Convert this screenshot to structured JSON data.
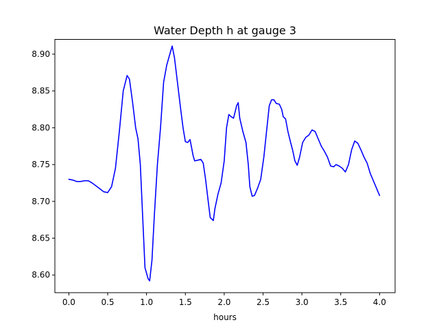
{
  "chart_data": {
    "type": "line",
    "title": "Water Depth h at gauge 3",
    "xlabel": "hours",
    "ylabel": "",
    "xlim": [
      -0.18,
      4.2
    ],
    "ylim": [
      8.576,
      8.92
    ],
    "xticks": [
      0.0,
      0.5,
      1.0,
      1.5,
      2.0,
      2.5,
      3.0,
      3.5,
      4.0
    ],
    "xtick_labels": [
      "0.0",
      "0.5",
      "1.0",
      "1.5",
      "2.0",
      "2.5",
      "3.0",
      "3.5",
      "4.0"
    ],
    "yticks": [
      8.6,
      8.65,
      8.7,
      8.75,
      8.8,
      8.85,
      8.9
    ],
    "ytick_labels": [
      "8.60",
      "8.65",
      "8.70",
      "8.75",
      "8.80",
      "8.85",
      "8.90"
    ],
    "grid": false,
    "series": [
      {
        "color": "#0000ff",
        "points": [
          [
            0.0,
            8.73
          ],
          [
            0.05,
            8.729
          ],
          [
            0.1,
            8.727
          ],
          [
            0.15,
            8.727
          ],
          [
            0.2,
            8.728
          ],
          [
            0.25,
            8.728
          ],
          [
            0.3,
            8.725
          ],
          [
            0.35,
            8.721
          ],
          [
            0.4,
            8.717
          ],
          [
            0.45,
            8.713
          ],
          [
            0.5,
            8.712
          ],
          [
            0.55,
            8.72
          ],
          [
            0.6,
            8.745
          ],
          [
            0.65,
            8.795
          ],
          [
            0.7,
            8.85
          ],
          [
            0.75,
            8.871
          ],
          [
            0.78,
            8.866
          ],
          [
            0.82,
            8.835
          ],
          [
            0.86,
            8.8
          ],
          [
            0.89,
            8.785
          ],
          [
            0.92,
            8.75
          ],
          [
            0.95,
            8.68
          ],
          [
            0.98,
            8.61
          ],
          [
            1.02,
            8.595
          ],
          [
            1.04,
            8.592
          ],
          [
            1.07,
            8.62
          ],
          [
            1.1,
            8.68
          ],
          [
            1.14,
            8.75
          ],
          [
            1.18,
            8.8
          ],
          [
            1.22,
            8.862
          ],
          [
            1.26,
            8.885
          ],
          [
            1.3,
            8.9
          ],
          [
            1.33,
            8.911
          ],
          [
            1.36,
            8.895
          ],
          [
            1.4,
            8.86
          ],
          [
            1.44,
            8.825
          ],
          [
            1.47,
            8.8
          ],
          [
            1.5,
            8.781
          ],
          [
            1.53,
            8.78
          ],
          [
            1.56,
            8.784
          ],
          [
            1.6,
            8.762
          ],
          [
            1.62,
            8.755
          ],
          [
            1.66,
            8.756
          ],
          [
            1.7,
            8.757
          ],
          [
            1.73,
            8.752
          ],
          [
            1.76,
            8.73
          ],
          [
            1.8,
            8.695
          ],
          [
            1.82,
            8.678
          ],
          [
            1.86,
            8.674
          ],
          [
            1.88,
            8.69
          ],
          [
            1.92,
            8.71
          ],
          [
            1.96,
            8.725
          ],
          [
            2.0,
            8.755
          ],
          [
            2.03,
            8.8
          ],
          [
            2.06,
            8.818
          ],
          [
            2.09,
            8.815
          ],
          [
            2.12,
            8.813
          ],
          [
            2.16,
            8.83
          ],
          [
            2.18,
            8.834
          ],
          [
            2.2,
            8.813
          ],
          [
            2.24,
            8.795
          ],
          [
            2.28,
            8.78
          ],
          [
            2.31,
            8.75
          ],
          [
            2.33,
            8.72
          ],
          [
            2.36,
            8.707
          ],
          [
            2.39,
            8.708
          ],
          [
            2.43,
            8.718
          ],
          [
            2.47,
            8.73
          ],
          [
            2.51,
            8.76
          ],
          [
            2.55,
            8.8
          ],
          [
            2.58,
            8.83
          ],
          [
            2.61,
            8.838
          ],
          [
            2.64,
            8.838
          ],
          [
            2.67,
            8.833
          ],
          [
            2.71,
            8.832
          ],
          [
            2.74,
            8.825
          ],
          [
            2.76,
            8.815
          ],
          [
            2.79,
            8.812
          ],
          [
            2.82,
            8.795
          ],
          [
            2.85,
            8.782
          ],
          [
            2.88,
            8.77
          ],
          [
            2.91,
            8.755
          ],
          [
            2.94,
            8.749
          ],
          [
            2.97,
            8.76
          ],
          [
            3.01,
            8.78
          ],
          [
            3.05,
            8.787
          ],
          [
            3.09,
            8.79
          ],
          [
            3.13,
            8.797
          ],
          [
            3.17,
            8.795
          ],
          [
            3.21,
            8.785
          ],
          [
            3.25,
            8.775
          ],
          [
            3.29,
            8.768
          ],
          [
            3.33,
            8.76
          ],
          [
            3.37,
            8.748
          ],
          [
            3.41,
            8.747
          ],
          [
            3.44,
            8.75
          ],
          [
            3.48,
            8.748
          ],
          [
            3.52,
            8.745
          ],
          [
            3.56,
            8.74
          ],
          [
            3.6,
            8.75
          ],
          [
            3.64,
            8.77
          ],
          [
            3.68,
            8.782
          ],
          [
            3.72,
            8.779
          ],
          [
            3.76,
            8.77
          ],
          [
            3.8,
            8.76
          ],
          [
            3.84,
            8.752
          ],
          [
            3.88,
            8.738
          ],
          [
            3.92,
            8.728
          ],
          [
            3.96,
            8.718
          ],
          [
            4.0,
            8.708
          ]
        ]
      }
    ]
  }
}
